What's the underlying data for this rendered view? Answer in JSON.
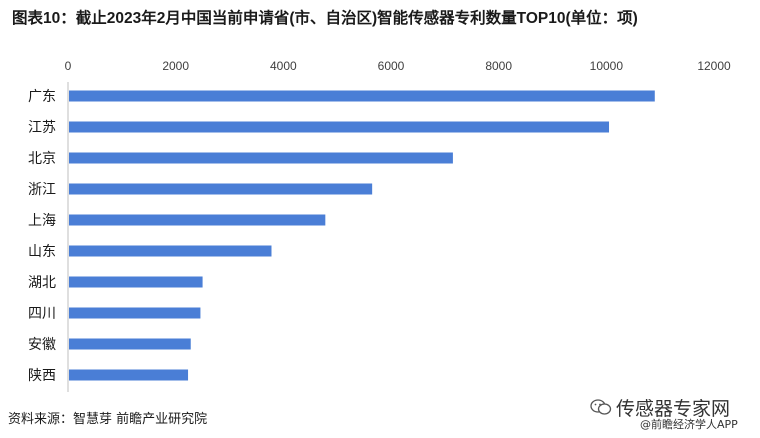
{
  "chart_data": {
    "type": "bar",
    "orientation": "horizontal",
    "title": "图表10：截止2023年2月中国当前申请省(市、自治区)智能传感器专利数量TOP10(单位：项)",
    "categories": [
      "广东",
      "江苏",
      "北京",
      "浙江",
      "上海",
      "山东",
      "湖北",
      "四川",
      "安徽",
      "陕西"
    ],
    "values": [
      10900,
      10050,
      7150,
      5650,
      4780,
      3780,
      2500,
      2460,
      2280,
      2230
    ],
    "xlim": [
      0,
      12000
    ],
    "x_ticks": [
      "0",
      "2000",
      "4000",
      "6000",
      "8000",
      "10000",
      "12000"
    ],
    "x_axis_position": "top",
    "grid": false,
    "legend": "none",
    "bar_color": "#4a7ed6"
  },
  "footer": {
    "source": "资料来源：智慧芽 前瞻产业研究院",
    "wechat_name": "传感器专家网",
    "app_credit": "@前瞻经济学人APP"
  }
}
